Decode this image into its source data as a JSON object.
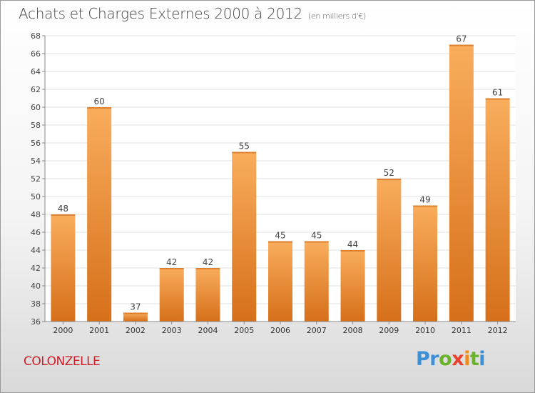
{
  "header": {
    "title": "Achats et Charges Externes 2000 à 2012",
    "subtitle": "(en milliers d'€)"
  },
  "footer": {
    "commune": "COLONZELLE",
    "logo_text": "Proxiti"
  },
  "colors": {
    "bar_light": "#f7a957",
    "bar_dark": "#d9731d",
    "commune": "#cc1f2a"
  },
  "chart_data": {
    "type": "bar",
    "title": "Achats et Charges Externes 2000 à 2012",
    "subtitle": "(en milliers d'€)",
    "xlabel": "",
    "ylabel": "",
    "categories": [
      "2000",
      "2001",
      "2002",
      "2003",
      "2004",
      "2005",
      "2006",
      "2007",
      "2008",
      "2009",
      "2010",
      "2011",
      "2012"
    ],
    "values": [
      48,
      60,
      37,
      42,
      42,
      55,
      45,
      45,
      44,
      52,
      49,
      67,
      61
    ],
    "ylim": [
      36,
      68
    ],
    "yticks": [
      36,
      38,
      40,
      42,
      44,
      46,
      48,
      50,
      52,
      54,
      56,
      58,
      60,
      62,
      64,
      66,
      68
    ],
    "grid": true,
    "legend": "none"
  }
}
